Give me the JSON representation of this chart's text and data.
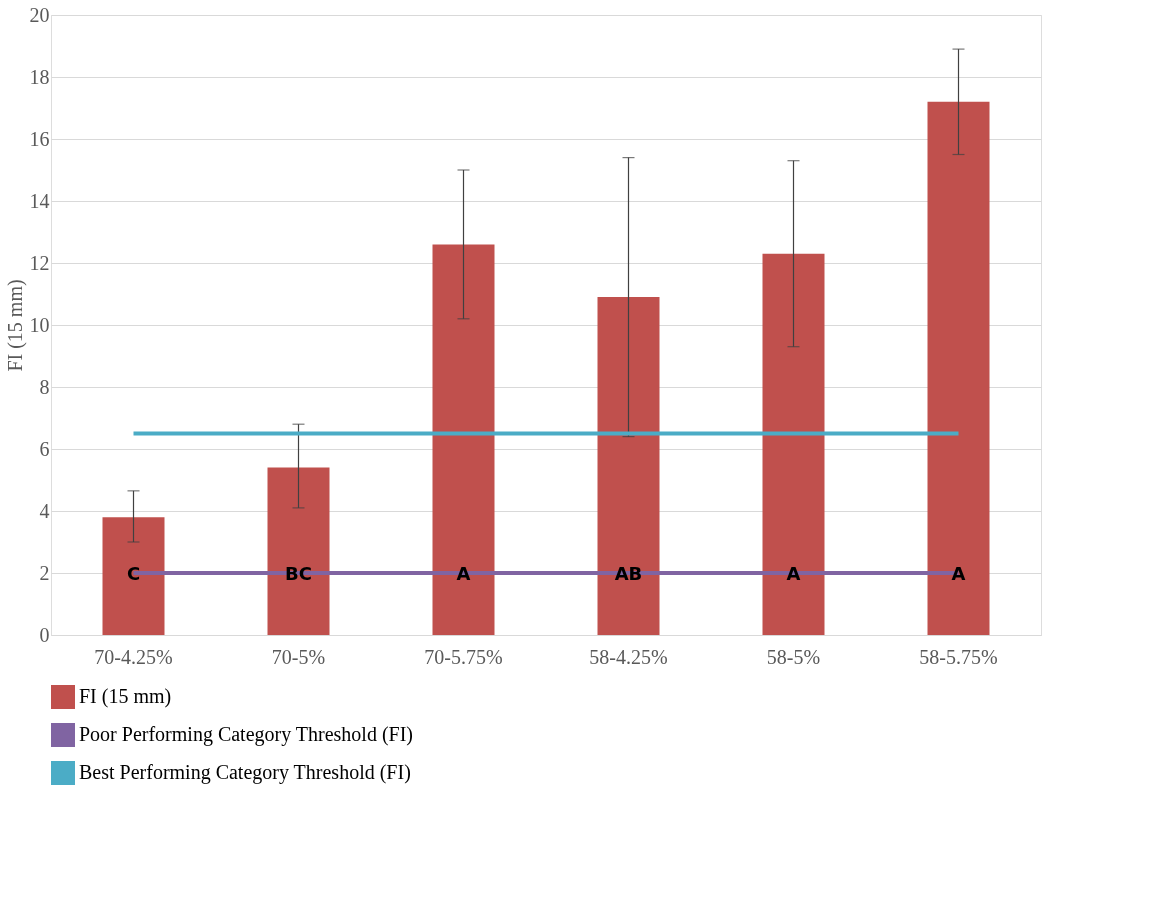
{
  "chart_data": {
    "type": "bar",
    "ylabel": "FI (15 mm)",
    "categories": [
      "70-4.25%",
      "70-5%",
      "70-5.75%",
      "58-4.25%",
      "58-5%",
      "58-5.75%"
    ],
    "series": [
      {
        "name": "FI  (15 mm)",
        "color": "#c0504d",
        "values": [
          3.8,
          5.4,
          12.6,
          10.9,
          12.3,
          17.2
        ],
        "errors": [
          [
            3.0,
            4.65
          ],
          [
            4.1,
            6.8
          ],
          [
            10.2,
            15.0
          ],
          [
            6.4,
            15.4
          ],
          [
            9.3,
            15.3
          ],
          [
            15.5,
            18.9
          ]
        ]
      },
      {
        "name": "Poor Performing Category Threshold (FI)",
        "type": "line",
        "color": "#8064a2",
        "values": [
          2,
          2,
          2,
          2,
          2,
          2
        ]
      },
      {
        "name": "Best Performing Category Threshold (FI)",
        "type": "line",
        "color": "#4bacc6",
        "values": [
          6.5,
          6.5,
          6.5,
          6.5,
          6.5,
          6.5
        ]
      }
    ],
    "annotations": [
      "C",
      "BC",
      "A",
      "AB",
      "A",
      "A"
    ],
    "ylim": [
      0,
      20
    ],
    "yticks": [
      0,
      2,
      4,
      6,
      8,
      10,
      12,
      14,
      16,
      18,
      20
    ],
    "grid": "y",
    "legend": "bottom"
  }
}
